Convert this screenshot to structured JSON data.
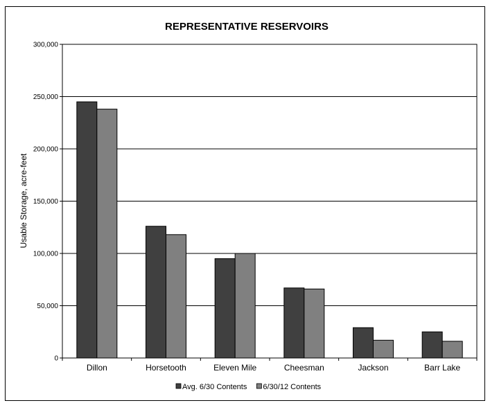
{
  "chart_data": {
    "type": "bar",
    "title": "REPRESENTATIVE RESERVOIRS",
    "xlabel": "",
    "ylabel": "Usable Storage, acre-feet",
    "categories": [
      "Dillon",
      "Horsetooth",
      "Eleven Mile",
      "Cheesman",
      "Jackson",
      "Barr Lake"
    ],
    "series": [
      {
        "name": "Avg. 6/30 Contents",
        "color": "#404040",
        "values": [
          245000,
          126000,
          95000,
          67000,
          29000,
          25000
        ]
      },
      {
        "name": "6/30/12 Contents",
        "color": "#808080",
        "values": [
          238000,
          118000,
          100000,
          66000,
          17000,
          16000
        ]
      }
    ],
    "ylim": [
      0,
      300000
    ],
    "yticks": [
      0,
      50000,
      100000,
      150000,
      200000,
      250000,
      300000
    ],
    "ytick_labels": [
      "0",
      "50,000",
      "100,000",
      "150,000",
      "200,000",
      "250,000",
      "300,000"
    ],
    "grid": true,
    "legend_position": "bottom"
  }
}
